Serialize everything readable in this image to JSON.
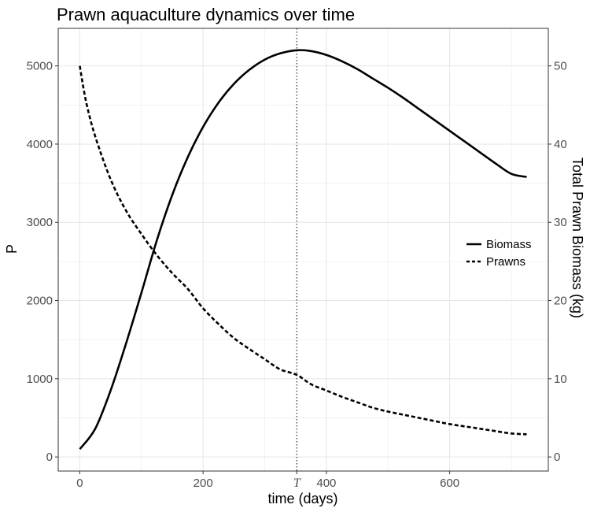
{
  "chart_data": {
    "type": "line",
    "title": "Prawn aquaculture dynamics over time",
    "xlabel": "time (days)",
    "ylabel_left": "P",
    "ylabel_right": "Total Prawn Biomass (kg)",
    "xlim": [
      -35,
      760
    ],
    "ylim_left": [
      -180,
      5480
    ],
    "ylim_right": [
      -1.8,
      54.8
    ],
    "x_ticks": [
      0,
      200,
      400,
      600
    ],
    "y_left_ticks": [
      0,
      1000,
      2000,
      3000,
      4000,
      5000
    ],
    "y_right_ticks": [
      0,
      10,
      20,
      30,
      40,
      50
    ],
    "vline": {
      "x": 352,
      "label": "T",
      "style": "dotted"
    },
    "grid": true,
    "legend_position": "right",
    "series": [
      {
        "name": "Biomass",
        "axis": "right",
        "linestyle": "solid",
        "x": [
          0,
          25,
          50,
          75,
          100,
          125,
          150,
          175,
          200,
          225,
          250,
          275,
          300,
          325,
          352,
          375,
          400,
          425,
          450,
          475,
          500,
          525,
          550,
          575,
          600,
          625,
          650,
          675,
          700,
          725
        ],
        "y": [
          1.0,
          3.6,
          8.5,
          14.5,
          21.0,
          27.7,
          33.5,
          38.3,
          42.2,
          45.3,
          47.7,
          49.5,
          50.8,
          51.6,
          52.0,
          51.9,
          51.4,
          50.6,
          49.6,
          48.4,
          47.2,
          45.9,
          44.5,
          43.1,
          41.7,
          40.3,
          38.9,
          37.5,
          36.2,
          35.8
        ]
      },
      {
        "name": "Prawns",
        "axis": "left",
        "linestyle": "dashed",
        "x": [
          0,
          10,
          25,
          50,
          75,
          100,
          125,
          150,
          175,
          200,
          225,
          250,
          275,
          300,
          325,
          352,
          375,
          400,
          425,
          450,
          475,
          500,
          525,
          550,
          575,
          600,
          625,
          650,
          675,
          700,
          725
        ],
        "y": [
          5000,
          4550,
          4100,
          3550,
          3150,
          2850,
          2580,
          2350,
          2150,
          1900,
          1700,
          1520,
          1380,
          1250,
          1120,
          1050,
          930,
          850,
          770,
          700,
          630,
          580,
          540,
          500,
          460,
          420,
          390,
          360,
          330,
          300,
          290
        ]
      }
    ]
  }
}
